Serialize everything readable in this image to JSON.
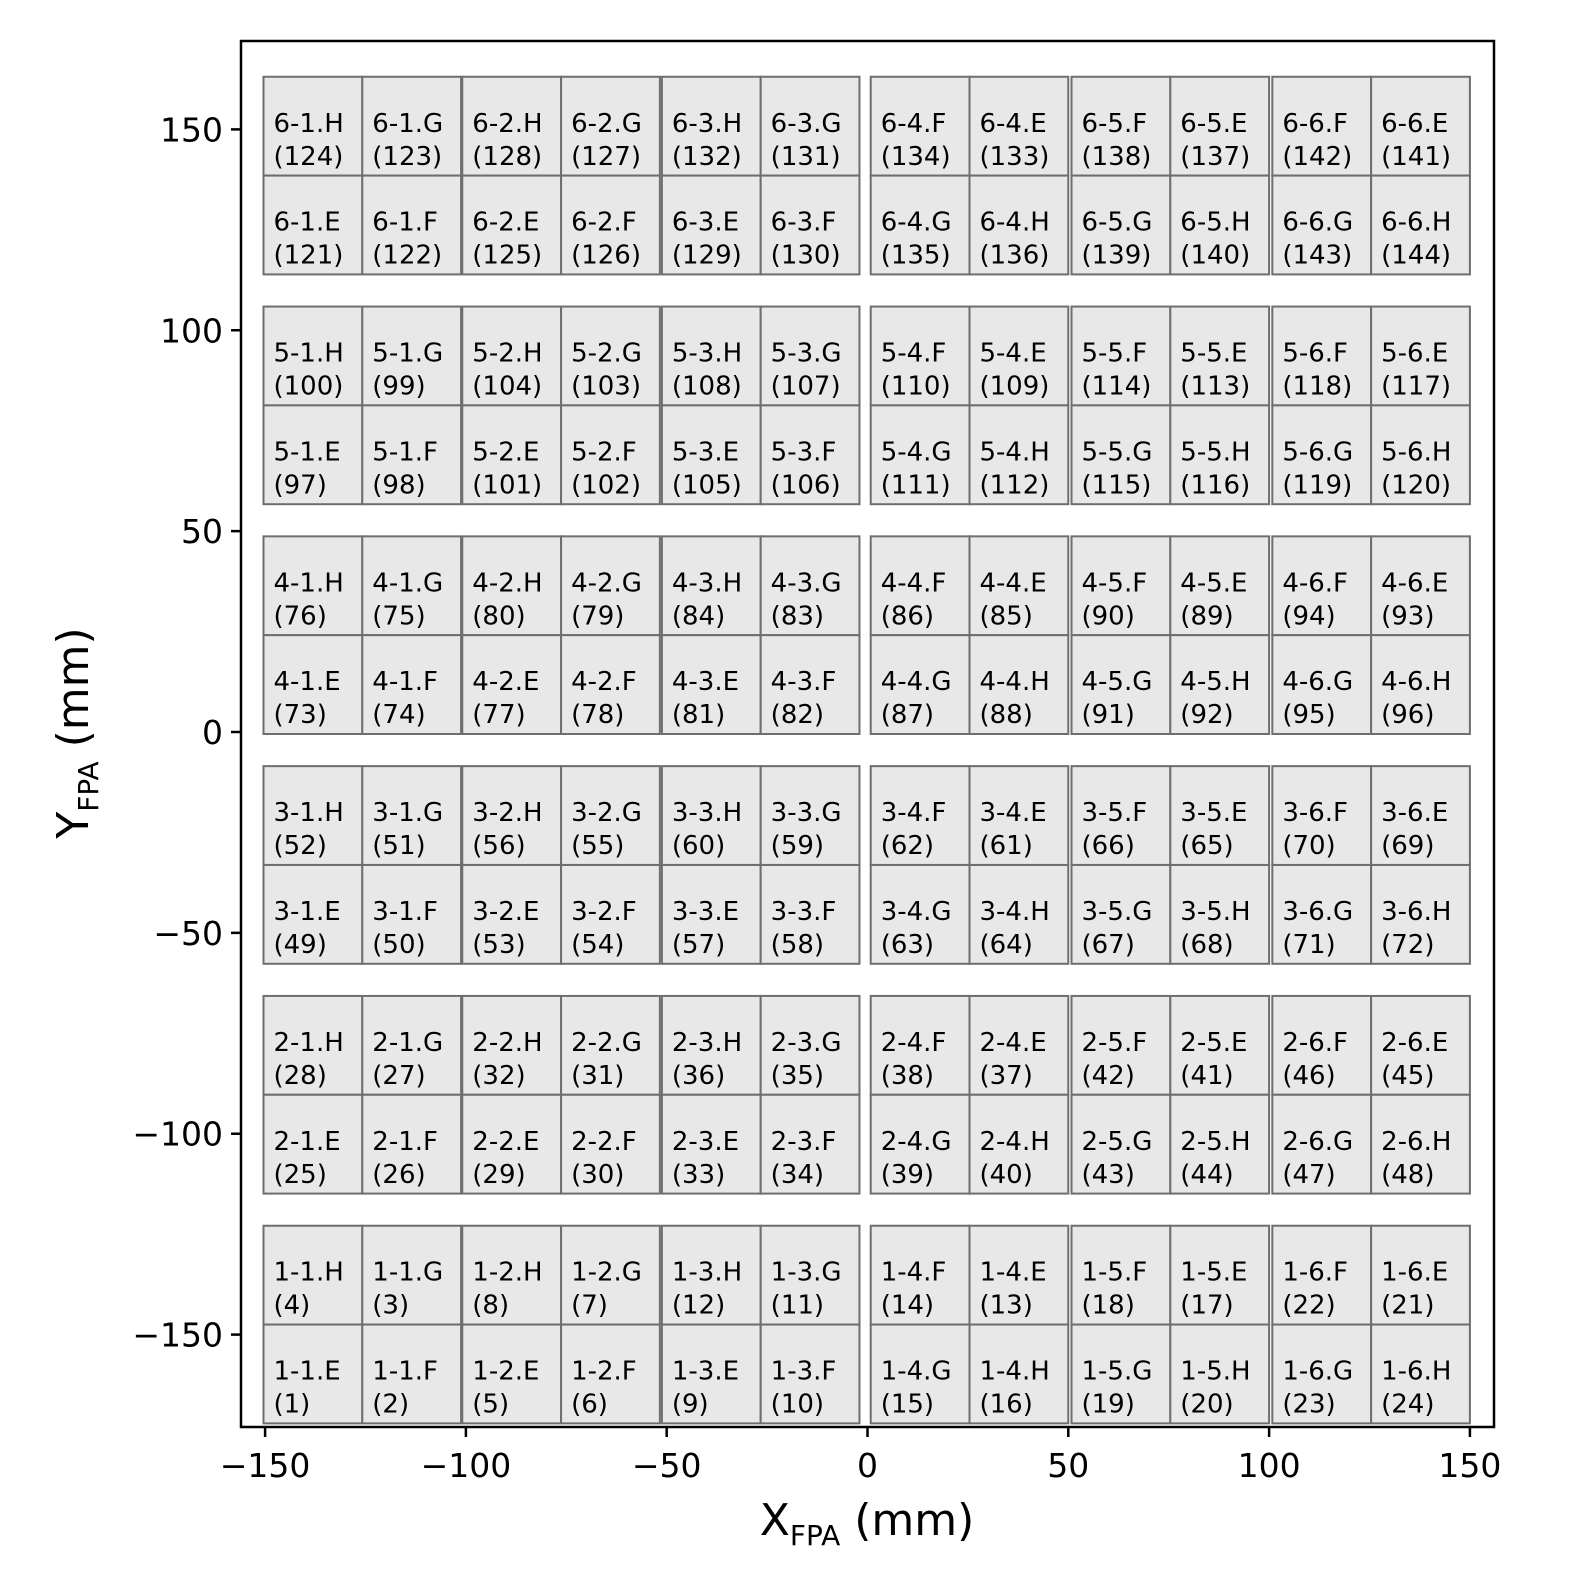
{
  "chart_data": {
    "type": "heatmap",
    "title": "",
    "xlabel": {
      "main": "X",
      "sub": "FPA",
      "unit": " (mm)"
    },
    "ylabel": {
      "main": "Y",
      "sub": "FPA",
      "unit": " (mm)"
    },
    "xlim": [
      -156,
      156
    ],
    "ylim": [
      -173,
      172
    ],
    "xticks": [
      -150,
      -100,
      -50,
      0,
      50,
      100,
      150
    ],
    "yticks": [
      -150,
      -100,
      -50,
      0,
      50,
      100,
      150
    ],
    "xtick_labels": [
      "−150",
      "−100",
      "−50",
      "0",
      "50",
      "100",
      "150"
    ],
    "ytick_labels": [
      "−150",
      "−100",
      "−50",
      "0",
      "50",
      "100",
      "150"
    ],
    "grid": false,
    "cell_width_mm": 24.6,
    "cell_height_mm": 24.6,
    "column_centers_x": [
      -138.1,
      -113.5,
      -88.6,
      -64.0,
      -38.9,
      -14.3,
      13.1,
      37.7,
      63.1,
      87.7,
      113.1,
      137.7
    ],
    "rows": [
      {
        "center_y": 150.8,
        "cells": [
          {
            "name": "6-1.H",
            "id": "(124)"
          },
          {
            "name": "6-1.G",
            "id": "(123)"
          },
          {
            "name": "6-2.H",
            "id": "(128)"
          },
          {
            "name": "6-2.G",
            "id": "(127)"
          },
          {
            "name": "6-3.H",
            "id": "(132)"
          },
          {
            "name": "6-3.G",
            "id": "(131)"
          },
          {
            "name": "6-4.F",
            "id": "(134)"
          },
          {
            "name": "6-4.E",
            "id": "(133)"
          },
          {
            "name": "6-5.F",
            "id": "(138)"
          },
          {
            "name": "6-5.E",
            "id": "(137)"
          },
          {
            "name": "6-6.F",
            "id": "(142)"
          },
          {
            "name": "6-6.E",
            "id": "(141)"
          }
        ]
      },
      {
        "center_y": 126.2,
        "cells": [
          {
            "name": "6-1.E",
            "id": "(121)"
          },
          {
            "name": "6-1.F",
            "id": "(122)"
          },
          {
            "name": "6-2.E",
            "id": "(125)"
          },
          {
            "name": "6-2.F",
            "id": "(126)"
          },
          {
            "name": "6-3.E",
            "id": "(129)"
          },
          {
            "name": "6-3.F",
            "id": "(130)"
          },
          {
            "name": "6-4.G",
            "id": "(135)"
          },
          {
            "name": "6-4.H",
            "id": "(136)"
          },
          {
            "name": "6-5.G",
            "id": "(139)"
          },
          {
            "name": "6-5.H",
            "id": "(140)"
          },
          {
            "name": "6-6.G",
            "id": "(143)"
          },
          {
            "name": "6-6.H",
            "id": "(144)"
          }
        ]
      },
      {
        "center_y": 93.6,
        "cells": [
          {
            "name": "5-1.H",
            "id": "(100)"
          },
          {
            "name": "5-1.G",
            "id": "(99)"
          },
          {
            "name": "5-2.H",
            "id": "(104)"
          },
          {
            "name": "5-2.G",
            "id": "(103)"
          },
          {
            "name": "5-3.H",
            "id": "(108)"
          },
          {
            "name": "5-3.G",
            "id": "(107)"
          },
          {
            "name": "5-4.F",
            "id": "(110)"
          },
          {
            "name": "5-4.E",
            "id": "(109)"
          },
          {
            "name": "5-5.F",
            "id": "(114)"
          },
          {
            "name": "5-5.E",
            "id": "(113)"
          },
          {
            "name": "5-6.F",
            "id": "(118)"
          },
          {
            "name": "5-6.E",
            "id": "(117)"
          }
        ]
      },
      {
        "center_y": 69.0,
        "cells": [
          {
            "name": "5-1.E",
            "id": "(97)"
          },
          {
            "name": "5-1.F",
            "id": "(98)"
          },
          {
            "name": "5-2.E",
            "id": "(101)"
          },
          {
            "name": "5-2.F",
            "id": "(102)"
          },
          {
            "name": "5-3.E",
            "id": "(105)"
          },
          {
            "name": "5-3.F",
            "id": "(106)"
          },
          {
            "name": "5-4.G",
            "id": "(111)"
          },
          {
            "name": "5-4.H",
            "id": "(112)"
          },
          {
            "name": "5-5.G",
            "id": "(115)"
          },
          {
            "name": "5-5.H",
            "id": "(116)"
          },
          {
            "name": "5-6.G",
            "id": "(119)"
          },
          {
            "name": "5-6.H",
            "id": "(120)"
          }
        ]
      },
      {
        "center_y": 36.4,
        "cells": [
          {
            "name": "4-1.H",
            "id": "(76)"
          },
          {
            "name": "4-1.G",
            "id": "(75)"
          },
          {
            "name": "4-2.H",
            "id": "(80)"
          },
          {
            "name": "4-2.G",
            "id": "(79)"
          },
          {
            "name": "4-3.H",
            "id": "(84)"
          },
          {
            "name": "4-3.G",
            "id": "(83)"
          },
          {
            "name": "4-4.F",
            "id": "(86)"
          },
          {
            "name": "4-4.E",
            "id": "(85)"
          },
          {
            "name": "4-5.F",
            "id": "(90)"
          },
          {
            "name": "4-5.E",
            "id": "(89)"
          },
          {
            "name": "4-6.F",
            "id": "(94)"
          },
          {
            "name": "4-6.E",
            "id": "(93)"
          }
        ]
      },
      {
        "center_y": 11.8,
        "cells": [
          {
            "name": "4-1.E",
            "id": "(73)"
          },
          {
            "name": "4-1.F",
            "id": "(74)"
          },
          {
            "name": "4-2.E",
            "id": "(77)"
          },
          {
            "name": "4-2.F",
            "id": "(78)"
          },
          {
            "name": "4-3.E",
            "id": "(81)"
          },
          {
            "name": "4-3.F",
            "id": "(82)"
          },
          {
            "name": "4-4.G",
            "id": "(87)"
          },
          {
            "name": "4-4.H",
            "id": "(88)"
          },
          {
            "name": "4-5.G",
            "id": "(91)"
          },
          {
            "name": "4-5.H",
            "id": "(92)"
          },
          {
            "name": "4-6.G",
            "id": "(95)"
          },
          {
            "name": "4-6.H",
            "id": "(96)"
          }
        ]
      },
      {
        "center_y": -20.8,
        "cells": [
          {
            "name": "3-1.H",
            "id": "(52)"
          },
          {
            "name": "3-1.G",
            "id": "(51)"
          },
          {
            "name": "3-2.H",
            "id": "(56)"
          },
          {
            "name": "3-2.G",
            "id": "(55)"
          },
          {
            "name": "3-3.H",
            "id": "(60)"
          },
          {
            "name": "3-3.G",
            "id": "(59)"
          },
          {
            "name": "3-4.F",
            "id": "(62)"
          },
          {
            "name": "3-4.E",
            "id": "(61)"
          },
          {
            "name": "3-5.F",
            "id": "(66)"
          },
          {
            "name": "3-5.E",
            "id": "(65)"
          },
          {
            "name": "3-6.F",
            "id": "(70)"
          },
          {
            "name": "3-6.E",
            "id": "(69)"
          }
        ]
      },
      {
        "center_y": -45.4,
        "cells": [
          {
            "name": "3-1.E",
            "id": "(49)"
          },
          {
            "name": "3-1.F",
            "id": "(50)"
          },
          {
            "name": "3-2.E",
            "id": "(53)"
          },
          {
            "name": "3-2.F",
            "id": "(54)"
          },
          {
            "name": "3-3.E",
            "id": "(57)"
          },
          {
            "name": "3-3.F",
            "id": "(58)"
          },
          {
            "name": "3-4.G",
            "id": "(63)"
          },
          {
            "name": "3-4.H",
            "id": "(64)"
          },
          {
            "name": "3-5.G",
            "id": "(67)"
          },
          {
            "name": "3-5.H",
            "id": "(68)"
          },
          {
            "name": "3-6.G",
            "id": "(71)"
          },
          {
            "name": "3-6.H",
            "id": "(72)"
          }
        ]
      },
      {
        "center_y": -78.0,
        "cells": [
          {
            "name": "2-1.H",
            "id": "(28)"
          },
          {
            "name": "2-1.G",
            "id": "(27)"
          },
          {
            "name": "2-2.H",
            "id": "(32)"
          },
          {
            "name": "2-2.G",
            "id": "(31)"
          },
          {
            "name": "2-3.H",
            "id": "(36)"
          },
          {
            "name": "2-3.G",
            "id": "(35)"
          },
          {
            "name": "2-4.F",
            "id": "(38)"
          },
          {
            "name": "2-4.E",
            "id": "(37)"
          },
          {
            "name": "2-5.F",
            "id": "(42)"
          },
          {
            "name": "2-5.E",
            "id": "(41)"
          },
          {
            "name": "2-6.F",
            "id": "(46)"
          },
          {
            "name": "2-6.E",
            "id": "(45)"
          }
        ]
      },
      {
        "center_y": -102.6,
        "cells": [
          {
            "name": "2-1.E",
            "id": "(25)"
          },
          {
            "name": "2-1.F",
            "id": "(26)"
          },
          {
            "name": "2-2.E",
            "id": "(29)"
          },
          {
            "name": "2-2.F",
            "id": "(30)"
          },
          {
            "name": "2-3.E",
            "id": "(33)"
          },
          {
            "name": "2-3.F",
            "id": "(34)"
          },
          {
            "name": "2-4.G",
            "id": "(39)"
          },
          {
            "name": "2-4.H",
            "id": "(40)"
          },
          {
            "name": "2-5.G",
            "id": "(43)"
          },
          {
            "name": "2-5.H",
            "id": "(44)"
          },
          {
            "name": "2-6.G",
            "id": "(47)"
          },
          {
            "name": "2-6.H",
            "id": "(48)"
          }
        ]
      },
      {
        "center_y": -135.2,
        "cells": [
          {
            "name": "1-1.H",
            "id": "(4)"
          },
          {
            "name": "1-1.G",
            "id": "(3)"
          },
          {
            "name": "1-2.H",
            "id": "(8)"
          },
          {
            "name": "1-2.G",
            "id": "(7)"
          },
          {
            "name": "1-3.H",
            "id": "(12)"
          },
          {
            "name": "1-3.G",
            "id": "(11)"
          },
          {
            "name": "1-4.F",
            "id": "(14)"
          },
          {
            "name": "1-4.E",
            "id": "(13)"
          },
          {
            "name": "1-5.F",
            "id": "(18)"
          },
          {
            "name": "1-5.E",
            "id": "(17)"
          },
          {
            "name": "1-6.F",
            "id": "(22)"
          },
          {
            "name": "1-6.E",
            "id": "(21)"
          }
        ]
      },
      {
        "center_y": -159.8,
        "cells": [
          {
            "name": "1-1.E",
            "id": "(1)"
          },
          {
            "name": "1-1.F",
            "id": "(2)"
          },
          {
            "name": "1-2.E",
            "id": "(5)"
          },
          {
            "name": "1-2.F",
            "id": "(6)"
          },
          {
            "name": "1-3.E",
            "id": "(9)"
          },
          {
            "name": "1-3.F",
            "id": "(10)"
          },
          {
            "name": "1-4.G",
            "id": "(15)"
          },
          {
            "name": "1-4.H",
            "id": "(16)"
          },
          {
            "name": "1-5.G",
            "id": "(19)"
          },
          {
            "name": "1-5.H",
            "id": "(20)"
          },
          {
            "name": "1-6.G",
            "id": "(23)"
          },
          {
            "name": "1-6.H",
            "id": "(24)"
          }
        ]
      }
    ],
    "colors": {
      "cell_fill": "#e8e8e8",
      "cell_edge": "#6e6e6e",
      "axes": "#000000"
    }
  }
}
